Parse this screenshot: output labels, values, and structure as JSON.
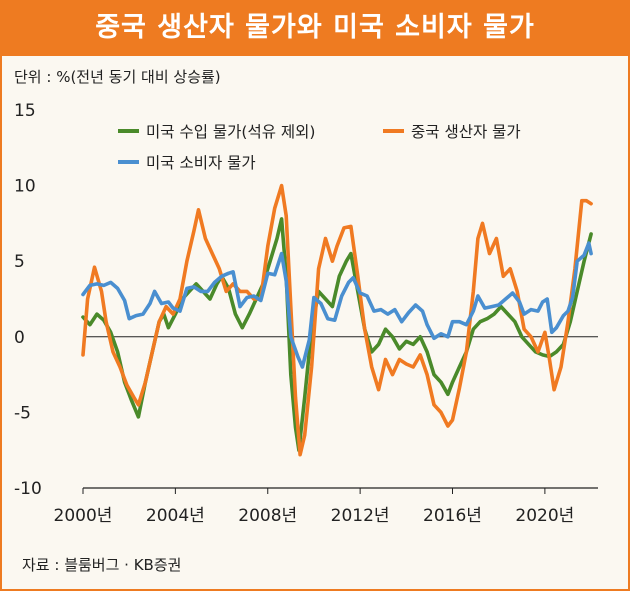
{
  "title": "중국 생산자 물가와 미국 소비자 물가",
  "unit_label": "단위 : %(전년 동기 대비 상승률)",
  "source": "자료 : 블룸버그 · KB증권",
  "colors": {
    "accent": "#ee7b21",
    "us_import": "#4a8a2a",
    "china_ppi": "#f07a22",
    "us_cpi": "#4a8fd0"
  },
  "chart_data": {
    "type": "line",
    "ylim": [
      -10,
      15
    ],
    "yticks": [
      15,
      10,
      5,
      0,
      -5,
      -10
    ],
    "xlim": [
      2000,
      2022.3
    ],
    "xticks": [
      2000,
      2004,
      2008,
      2012,
      2016,
      2020
    ],
    "xtick_labels": [
      "2000년",
      "2004년",
      "2008년",
      "2012년",
      "2016년",
      "2020년"
    ],
    "series": [
      {
        "name": "미국 수입 물가(석유 제외)",
        "color": "#4a8a2a",
        "points": [
          [
            2000.0,
            1.3
          ],
          [
            2000.3,
            0.8
          ],
          [
            2000.6,
            1.5
          ],
          [
            2000.9,
            1.1
          ],
          [
            2001.2,
            0.3
          ],
          [
            2001.5,
            -1.0
          ],
          [
            2001.8,
            -3.0
          ],
          [
            2002.1,
            -4.2
          ],
          [
            2002.4,
            -5.3
          ],
          [
            2002.7,
            -3.0
          ],
          [
            2003.0,
            -1.0
          ],
          [
            2003.3,
            1.0
          ],
          [
            2003.5,
            1.5
          ],
          [
            2003.7,
            0.6
          ],
          [
            2004.0,
            1.5
          ],
          [
            2004.3,
            2.5
          ],
          [
            2004.6,
            3.0
          ],
          [
            2004.9,
            3.5
          ],
          [
            2005.2,
            3.0
          ],
          [
            2005.5,
            2.5
          ],
          [
            2005.8,
            3.5
          ],
          [
            2006.0,
            4.0
          ],
          [
            2006.3,
            3.2
          ],
          [
            2006.6,
            1.5
          ],
          [
            2006.9,
            0.6
          ],
          [
            2007.2,
            1.5
          ],
          [
            2007.5,
            2.5
          ],
          [
            2007.8,
            3.5
          ],
          [
            2008.1,
            5.0
          ],
          [
            2008.4,
            6.5
          ],
          [
            2008.6,
            7.8
          ],
          [
            2008.8,
            4.0
          ],
          [
            2009.0,
            -2.5
          ],
          [
            2009.2,
            -6.0
          ],
          [
            2009.35,
            -7.5
          ],
          [
            2009.6,
            -4.0
          ],
          [
            2009.9,
            0.5
          ],
          [
            2010.2,
            3.0
          ],
          [
            2010.5,
            2.5
          ],
          [
            2010.8,
            2.0
          ],
          [
            2011.1,
            4.0
          ],
          [
            2011.4,
            5.0
          ],
          [
            2011.6,
            5.5
          ],
          [
            2011.9,
            3.0
          ],
          [
            2012.2,
            0.5
          ],
          [
            2012.5,
            -1.0
          ],
          [
            2012.8,
            -0.5
          ],
          [
            2013.1,
            0.5
          ],
          [
            2013.4,
            0.0
          ],
          [
            2013.7,
            -0.8
          ],
          [
            2014.0,
            -0.3
          ],
          [
            2014.3,
            -0.5
          ],
          [
            2014.6,
            0.0
          ],
          [
            2014.9,
            -1.0
          ],
          [
            2015.2,
            -2.5
          ],
          [
            2015.5,
            -3.0
          ],
          [
            2015.8,
            -3.8
          ],
          [
            2016.0,
            -3.0
          ],
          [
            2016.3,
            -2.0
          ],
          [
            2016.6,
            -1.0
          ],
          [
            2016.9,
            0.5
          ],
          [
            2017.2,
            1.0
          ],
          [
            2017.5,
            1.2
          ],
          [
            2017.8,
            1.5
          ],
          [
            2018.1,
            2.0
          ],
          [
            2018.4,
            1.5
          ],
          [
            2018.7,
            1.0
          ],
          [
            2019.0,
            0.0
          ],
          [
            2019.3,
            -0.5
          ],
          [
            2019.6,
            -1.0
          ],
          [
            2019.9,
            -1.2
          ],
          [
            2020.2,
            -1.3
          ],
          [
            2020.5,
            -1.0
          ],
          [
            2020.8,
            -0.5
          ],
          [
            2021.1,
            1.0
          ],
          [
            2021.4,
            3.0
          ],
          [
            2021.7,
            5.0
          ],
          [
            2022.0,
            6.8
          ]
        ]
      },
      {
        "name": "중국 생산자 물가",
        "color": "#f07a22",
        "points": [
          [
            2000.0,
            -1.2
          ],
          [
            2000.2,
            2.5
          ],
          [
            2000.5,
            4.6
          ],
          [
            2000.8,
            3.0
          ],
          [
            2001.0,
            1.0
          ],
          [
            2001.3,
            -1.0
          ],
          [
            2001.6,
            -2.0
          ],
          [
            2001.9,
            -3.2
          ],
          [
            2002.2,
            -4.0
          ],
          [
            2002.4,
            -4.5
          ],
          [
            2002.7,
            -3.0
          ],
          [
            2003.0,
            -1.0
          ],
          [
            2003.3,
            1.0
          ],
          [
            2003.6,
            2.0
          ],
          [
            2003.9,
            1.5
          ],
          [
            2004.2,
            2.5
          ],
          [
            2004.5,
            5.0
          ],
          [
            2004.8,
            7.0
          ],
          [
            2005.0,
            8.4
          ],
          [
            2005.3,
            6.5
          ],
          [
            2005.6,
            5.5
          ],
          [
            2005.9,
            4.5
          ],
          [
            2006.2,
            3.0
          ],
          [
            2006.5,
            3.5
          ],
          [
            2006.8,
            3.0
          ],
          [
            2007.1,
            3.0
          ],
          [
            2007.4,
            2.5
          ],
          [
            2007.7,
            2.5
          ],
          [
            2008.0,
            6.0
          ],
          [
            2008.3,
            8.5
          ],
          [
            2008.6,
            10.0
          ],
          [
            2008.8,
            8.0
          ],
          [
            2009.0,
            2.0
          ],
          [
            2009.2,
            -4.0
          ],
          [
            2009.4,
            -7.8
          ],
          [
            2009.6,
            -6.5
          ],
          [
            2009.9,
            -2.0
          ],
          [
            2010.2,
            4.5
          ],
          [
            2010.5,
            6.5
          ],
          [
            2010.8,
            5.0
          ],
          [
            2011.0,
            6.0
          ],
          [
            2011.3,
            7.2
          ],
          [
            2011.6,
            7.3
          ],
          [
            2011.9,
            4.0
          ],
          [
            2012.2,
            0.5
          ],
          [
            2012.5,
            -2.0
          ],
          [
            2012.8,
            -3.5
          ],
          [
            2013.1,
            -1.5
          ],
          [
            2013.4,
            -2.5
          ],
          [
            2013.7,
            -1.5
          ],
          [
            2014.0,
            -1.8
          ],
          [
            2014.3,
            -2.0
          ],
          [
            2014.6,
            -1.2
          ],
          [
            2014.9,
            -2.5
          ],
          [
            2015.2,
            -4.5
          ],
          [
            2015.5,
            -5.0
          ],
          [
            2015.8,
            -5.9
          ],
          [
            2016.0,
            -5.5
          ],
          [
            2016.3,
            -3.4
          ],
          [
            2016.6,
            -1.0
          ],
          [
            2016.9,
            3.0
          ],
          [
            2017.1,
            6.5
          ],
          [
            2017.3,
            7.5
          ],
          [
            2017.6,
            5.5
          ],
          [
            2017.9,
            6.5
          ],
          [
            2018.2,
            4.0
          ],
          [
            2018.5,
            4.5
          ],
          [
            2018.8,
            3.0
          ],
          [
            2019.1,
            0.5
          ],
          [
            2019.4,
            0.0
          ],
          [
            2019.7,
            -1.0
          ],
          [
            2020.0,
            0.3
          ],
          [
            2020.2,
            -1.5
          ],
          [
            2020.4,
            -3.5
          ],
          [
            2020.7,
            -2.0
          ],
          [
            2021.0,
            1.0
          ],
          [
            2021.3,
            4.5
          ],
          [
            2021.6,
            9.0
          ],
          [
            2021.8,
            9.0
          ],
          [
            2022.0,
            8.8
          ]
        ]
      },
      {
        "name": "미국 소비자 물가",
        "color": "#4a8fd0",
        "points": [
          [
            2000.0,
            2.8
          ],
          [
            2000.3,
            3.4
          ],
          [
            2000.6,
            3.5
          ],
          [
            2000.9,
            3.4
          ],
          [
            2001.2,
            3.6
          ],
          [
            2001.5,
            3.2
          ],
          [
            2001.8,
            2.4
          ],
          [
            2002.0,
            1.2
          ],
          [
            2002.3,
            1.4
          ],
          [
            2002.6,
            1.5
          ],
          [
            2002.9,
            2.2
          ],
          [
            2003.1,
            3.0
          ],
          [
            2003.4,
            2.2
          ],
          [
            2003.7,
            2.3
          ],
          [
            2003.9,
            1.9
          ],
          [
            2004.2,
            1.7
          ],
          [
            2004.5,
            3.2
          ],
          [
            2004.8,
            3.3
          ],
          [
            2005.1,
            3.0
          ],
          [
            2005.4,
            3.0
          ],
          [
            2005.7,
            3.6
          ],
          [
            2006.0,
            4.0
          ],
          [
            2006.3,
            4.2
          ],
          [
            2006.5,
            4.3
          ],
          [
            2006.8,
            2.0
          ],
          [
            2007.1,
            2.6
          ],
          [
            2007.4,
            2.7
          ],
          [
            2007.7,
            2.4
          ],
          [
            2008.0,
            4.2
          ],
          [
            2008.3,
            4.1
          ],
          [
            2008.6,
            5.5
          ],
          [
            2008.8,
            3.7
          ],
          [
            2009.0,
            0.0
          ],
          [
            2009.3,
            -1.3
          ],
          [
            2009.5,
            -2.0
          ],
          [
            2009.8,
            -0.2
          ],
          [
            2010.0,
            2.6
          ],
          [
            2010.3,
            2.2
          ],
          [
            2010.6,
            1.2
          ],
          [
            2010.9,
            1.1
          ],
          [
            2011.2,
            2.7
          ],
          [
            2011.5,
            3.6
          ],
          [
            2011.7,
            3.9
          ],
          [
            2012.0,
            2.9
          ],
          [
            2012.3,
            2.7
          ],
          [
            2012.6,
            1.7
          ],
          [
            2012.9,
            1.8
          ],
          [
            2013.2,
            1.5
          ],
          [
            2013.5,
            1.8
          ],
          [
            2013.8,
            1.0
          ],
          [
            2014.1,
            1.6
          ],
          [
            2014.4,
            2.1
          ],
          [
            2014.7,
            1.7
          ],
          [
            2014.9,
            0.8
          ],
          [
            2015.2,
            -0.1
          ],
          [
            2015.5,
            0.2
          ],
          [
            2015.8,
            0.0
          ],
          [
            2016.0,
            1.0
          ],
          [
            2016.3,
            1.0
          ],
          [
            2016.6,
            0.8
          ],
          [
            2016.9,
            1.7
          ],
          [
            2017.1,
            2.7
          ],
          [
            2017.4,
            1.9
          ],
          [
            2017.7,
            2.0
          ],
          [
            2018.0,
            2.1
          ],
          [
            2018.3,
            2.5
          ],
          [
            2018.6,
            2.9
          ],
          [
            2018.9,
            2.3
          ],
          [
            2019.1,
            1.5
          ],
          [
            2019.4,
            1.8
          ],
          [
            2019.7,
            1.7
          ],
          [
            2019.9,
            2.3
          ],
          [
            2020.1,
            2.5
          ],
          [
            2020.3,
            0.3
          ],
          [
            2020.5,
            0.6
          ],
          [
            2020.8,
            1.4
          ],
          [
            2021.0,
            1.7
          ],
          [
            2021.2,
            2.6
          ],
          [
            2021.4,
            5.0
          ],
          [
            2021.7,
            5.4
          ],
          [
            2021.9,
            6.2
          ],
          [
            2022.0,
            5.5
          ]
        ]
      }
    ],
    "legend": [
      {
        "name": "미국 수입 물가(석유 제외)",
        "color": "#4a8a2a"
      },
      {
        "name": "중국 생산자 물가",
        "color": "#f07a22"
      },
      {
        "name": "미국 소비자 물가",
        "color": "#4a8fd0"
      }
    ]
  }
}
